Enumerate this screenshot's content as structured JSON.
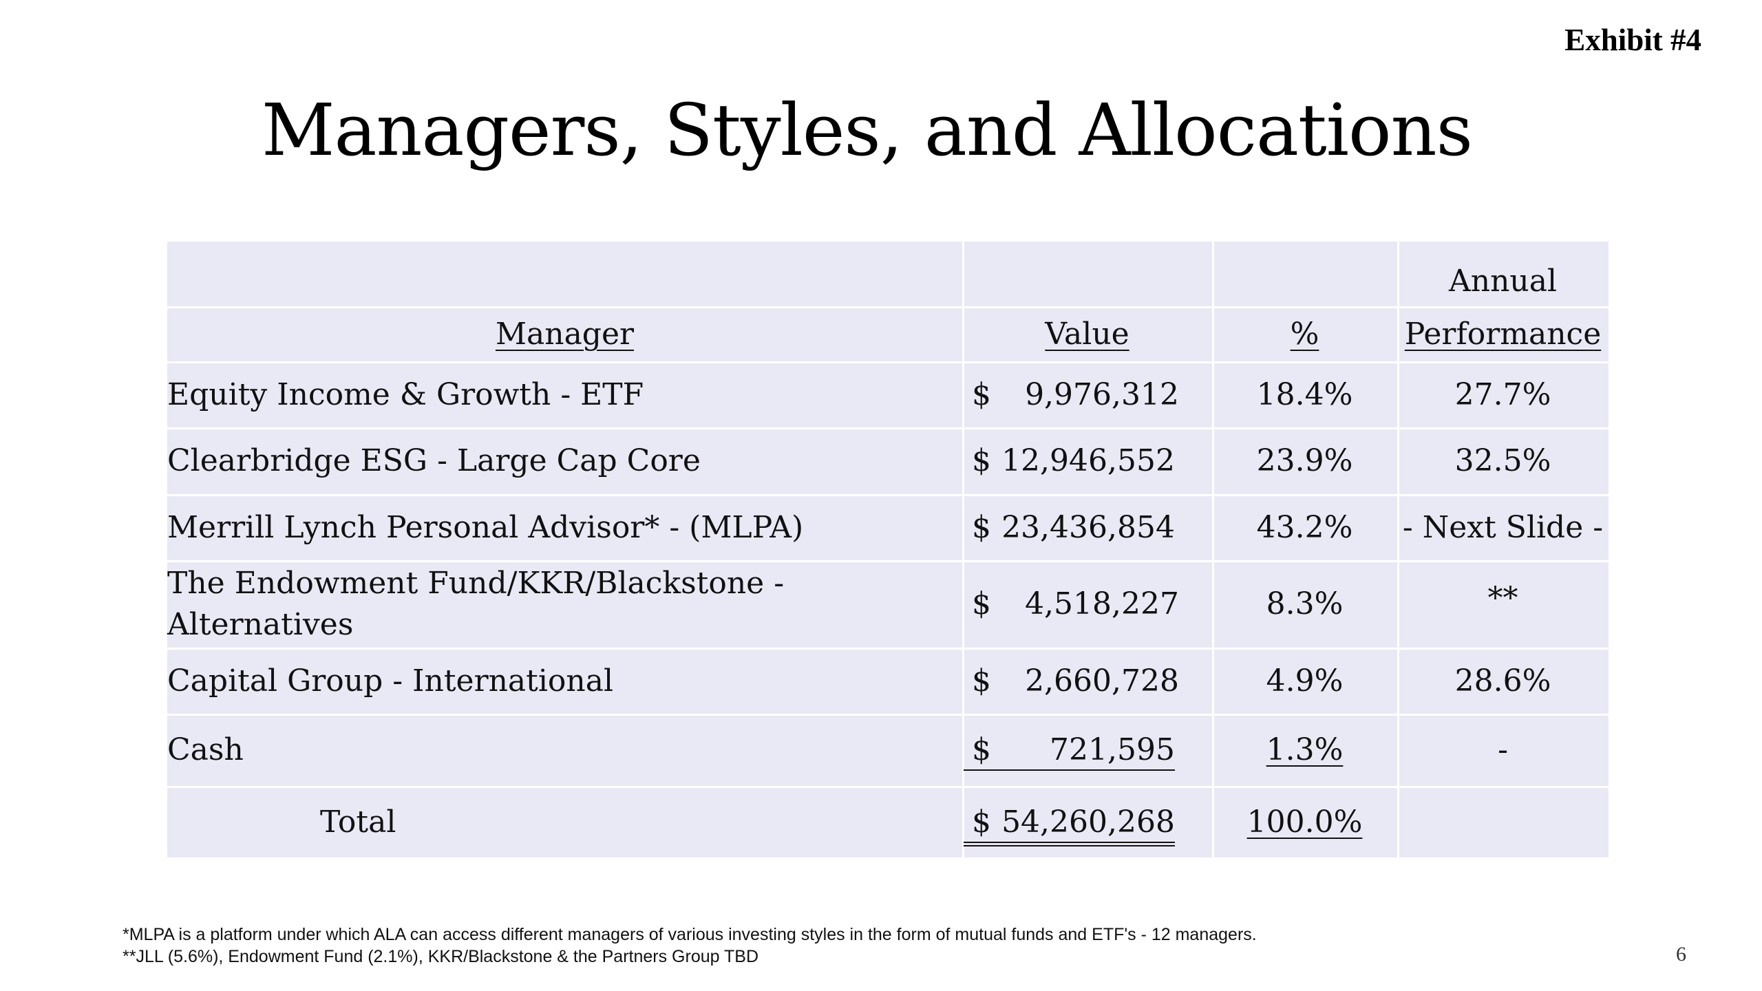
{
  "exhibit_label": "Exhibit #4",
  "title": "Managers, Styles, and Allocations",
  "table": {
    "headers": {
      "manager": "Manager",
      "value": "Value",
      "percent": "%",
      "performance_line1": "Annual",
      "performance_line2": "Performance"
    },
    "rows": [
      {
        "manager": "Equity Income & Growth - ETF",
        "currency": "$",
        "value": "9,976,312",
        "percent": "18.4%",
        "performance": "27.7%"
      },
      {
        "manager": "Clearbridge ESG - Large Cap Core",
        "currency": "$",
        "value": "12,946,552",
        "percent": "23.9%",
        "performance": "32.5%"
      },
      {
        "manager": "Merrill Lynch Personal Advisor* - (MLPA)",
        "currency": "$",
        "value": "23,436,854",
        "percent": "43.2%",
        "performance": "- Next Slide -"
      },
      {
        "manager": "The Endowment Fund/KKR/Blackstone - Alternatives",
        "currency": "$",
        "value": "4,518,227",
        "percent": "8.3%",
        "performance": "**"
      },
      {
        "manager": "Capital Group - International",
        "currency": "$",
        "value": "2,660,728",
        "percent": "4.9%",
        "performance": "28.6%"
      },
      {
        "manager": "Cash",
        "currency": "$",
        "value": "721,595",
        "percent": "1.3%",
        "performance": "-"
      }
    ],
    "total": {
      "label": "Total",
      "currency": "$",
      "value": "54,260,268",
      "percent": "100.0%",
      "performance": ""
    }
  },
  "footnotes": [
    "*MLPA is a platform under which ALA can access different managers of various investing styles in the form of mutual funds and ETF's - 12 managers.",
    "**JLL (5.6%), Endowment Fund (2.1%), KKR/Blackstone & the Partners Group TBD"
  ],
  "page_number": "6"
}
